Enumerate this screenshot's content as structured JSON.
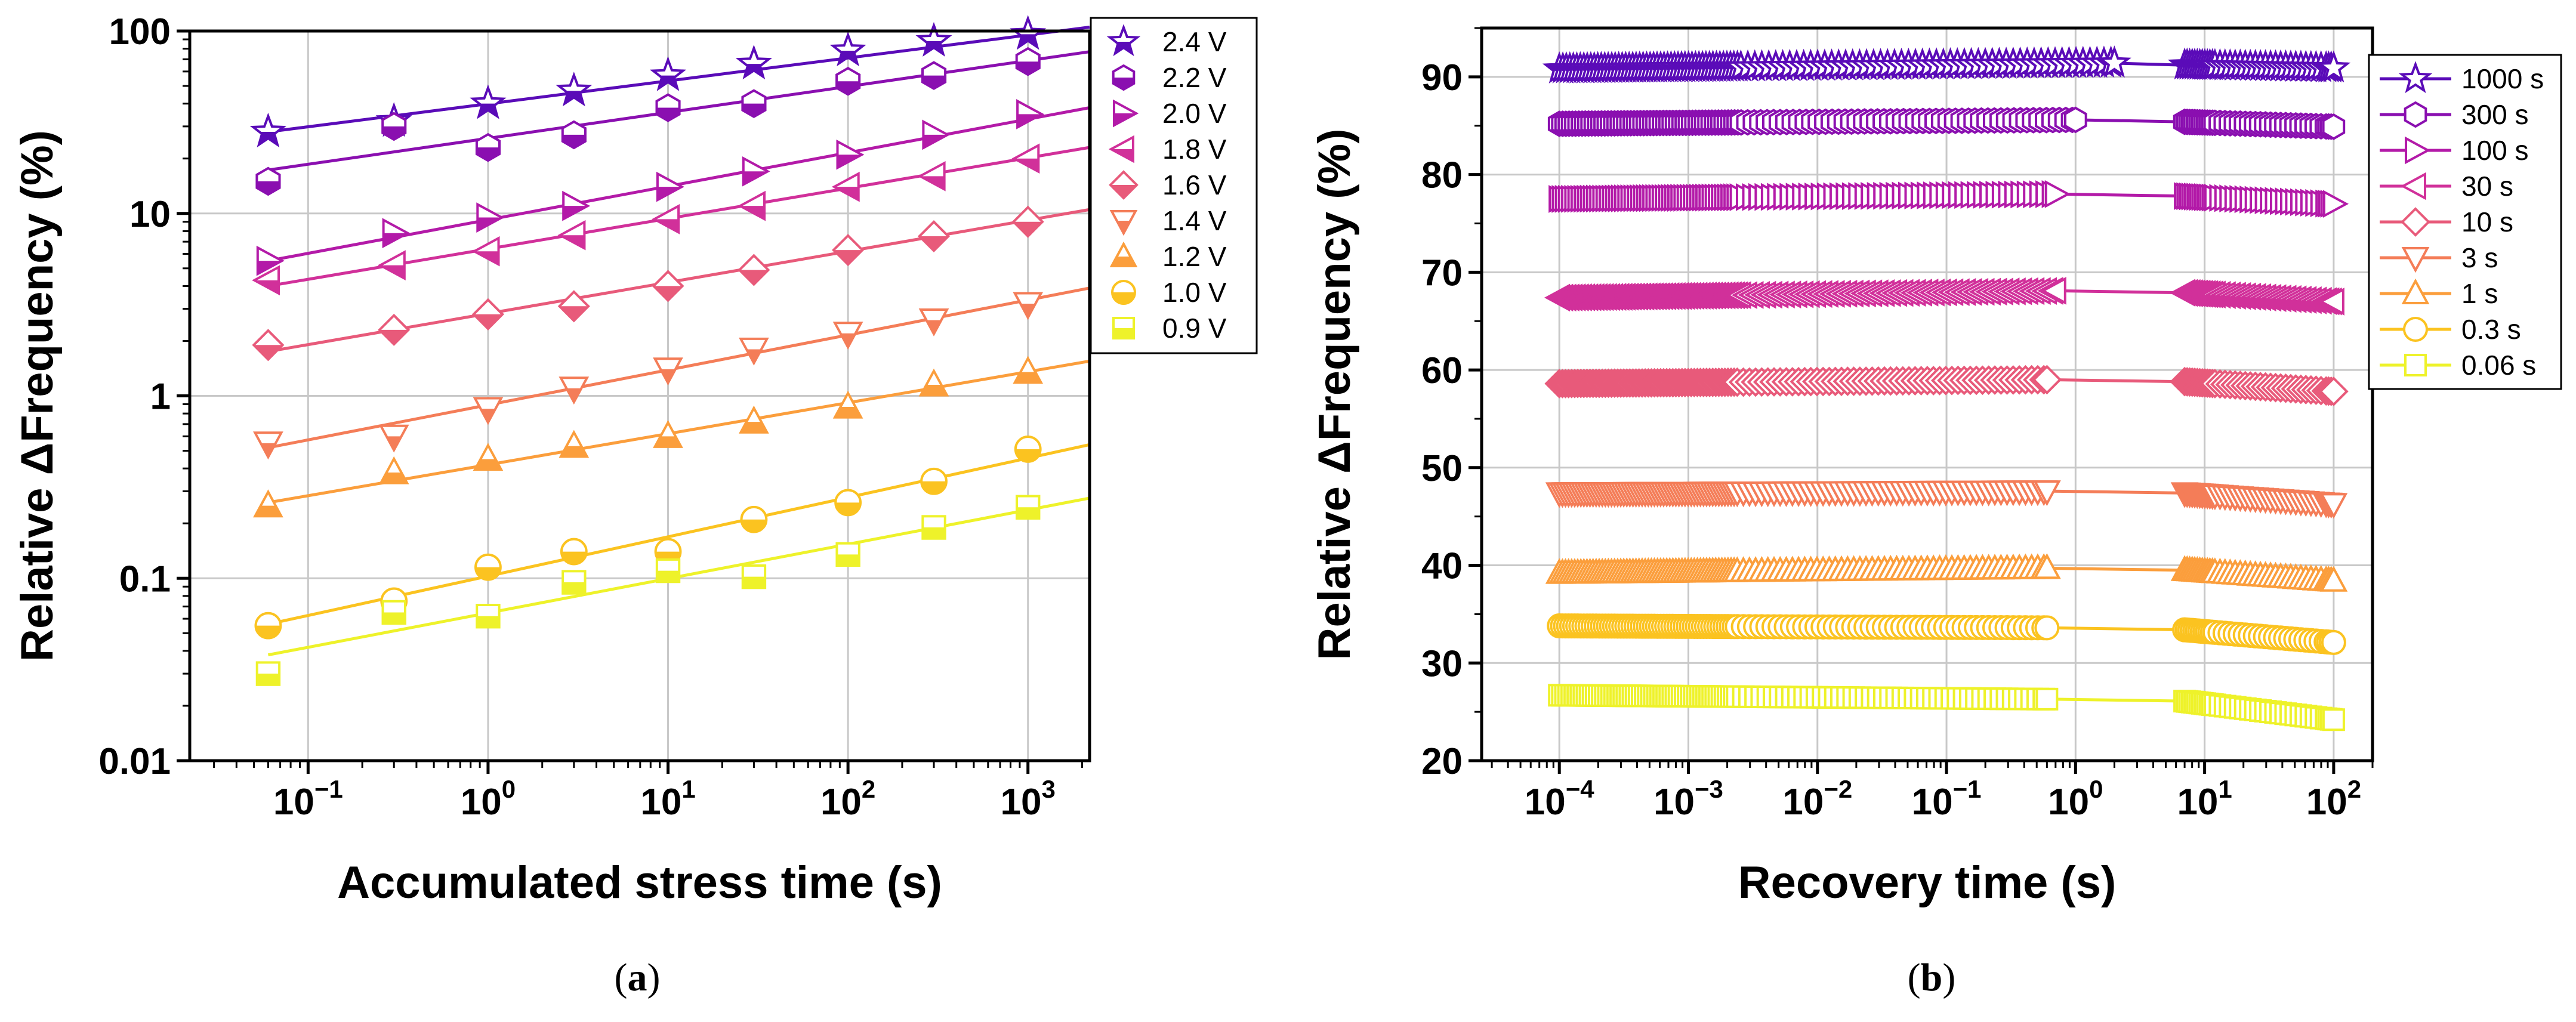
{
  "figure_captions": {
    "a": "a",
    "b": "b"
  },
  "colors": {
    "palette": [
      "#5a0bb8",
      "#8a0fb0",
      "#b31aa8",
      "#d1309a",
      "#e85a7a",
      "#f47d58",
      "#fb9e3c",
      "#fbc320",
      "#eef22a"
    ]
  },
  "chart_data": [
    {
      "id": "a",
      "type": "scatter",
      "x_scale": "log",
      "y_scale": "log",
      "xlabel": "Accumulated stress time (s)",
      "ylabel": "Relative ΔFrequency (%)",
      "xlim": [
        0.022,
        2200
      ],
      "ylim": [
        0.01,
        100
      ],
      "x_ticks": [
        {
          "base": "10",
          "exp": "−1",
          "value": 0.1
        },
        {
          "base": "10",
          "exp": "0",
          "value": 1
        },
        {
          "base": "10",
          "exp": "1",
          "value": 10
        },
        {
          "base": "10",
          "exp": "2",
          "value": 100
        },
        {
          "base": "10",
          "exp": "3",
          "value": 1000
        }
      ],
      "y_ticks": [
        {
          "label": "0.01",
          "value": 0.01
        },
        {
          "label": "0.1",
          "value": 0.1
        },
        {
          "label": "1",
          "value": 1
        },
        {
          "label": "10",
          "value": 10
        },
        {
          "label": "100",
          "value": 100
        }
      ],
      "grid": true,
      "legend_position": "top-right",
      "x": [
        0.06,
        0.3,
        1,
        3,
        10,
        30,
        100,
        300,
        1000
      ],
      "series": [
        {
          "name": "2.4 V",
          "marker": "star",
          "values": [
            28,
            32,
            40,
            47,
            57,
            66,
            78,
            88,
            96
          ],
          "fit": [
            28,
            105
          ]
        },
        {
          "name": "2.2 V",
          "marker": "hexagon",
          "values": [
            15,
            30,
            23,
            27,
            38,
            40,
            53,
            57,
            68
          ],
          "fit": [
            17.3,
            77
          ]
        },
        {
          "name": "2.0 V",
          "marker": "triangle-right",
          "values": [
            5.5,
            7.8,
            9.5,
            11,
            14,
            17,
            21,
            27,
            35
          ],
          "fit": [
            5.5,
            38
          ]
        },
        {
          "name": "1.8 V",
          "marker": "triangle-left",
          "values": [
            4.3,
            5.2,
            6.2,
            7.6,
            9.3,
            11,
            14,
            16,
            20
          ],
          "fit": [
            4,
            23
          ]
        },
        {
          "name": "1.6 V",
          "marker": "diamond",
          "values": [
            1.9,
            2.3,
            2.8,
            3.1,
            4.0,
            4.9,
            6.3,
            7.5,
            9.0
          ],
          "fit": [
            1.75,
            10.5
          ]
        },
        {
          "name": "1.4 V",
          "marker": "triangle-down",
          "values": [
            0.55,
            0.6,
            0.85,
            1.1,
            1.4,
            1.8,
            2.2,
            2.6,
            3.2
          ],
          "fit": [
            0.52,
            3.9
          ]
        },
        {
          "name": "1.2 V",
          "marker": "triangle-up",
          "values": [
            0.25,
            0.38,
            0.45,
            0.53,
            0.6,
            0.72,
            0.87,
            1.15,
            1.35
          ],
          "fit": [
            0.26,
            1.55
          ]
        },
        {
          "name": "1.0 V",
          "marker": "circle",
          "values": [
            0.055,
            0.075,
            0.115,
            0.14,
            0.14,
            0.21,
            0.26,
            0.34,
            0.51
          ],
          "fit": [
            0.056,
            0.54
          ]
        },
        {
          "name": "0.9 V",
          "marker": "square",
          "values": [
            0.03,
            0.065,
            0.062,
            0.095,
            0.11,
            0.102,
            0.135,
            0.19,
            0.245
          ],
          "fit": [
            0.038,
            0.275
          ]
        }
      ]
    },
    {
      "id": "b",
      "type": "line",
      "x_scale": "log",
      "y_scale": "linear",
      "xlabel": "Recovery time (s)",
      "ylabel": "Relative ΔFrequency (%)",
      "xlim": [
        2.5e-05,
        200
      ],
      "ylim": [
        20,
        95
      ],
      "x_ticks": [
        {
          "base": "10",
          "exp": "−4",
          "value": 0.0001
        },
        {
          "base": "10",
          "exp": "−3",
          "value": 0.001
        },
        {
          "base": "10",
          "exp": "−2",
          "value": 0.01
        },
        {
          "base": "10",
          "exp": "−1",
          "value": 0.1
        },
        {
          "base": "10",
          "exp": "0",
          "value": 1
        },
        {
          "base": "10",
          "exp": "1",
          "value": 10
        },
        {
          "base": "10",
          "exp": "2",
          "value": 100
        }
      ],
      "y_ticks": [
        {
          "label": "20",
          "value": 20
        },
        {
          "label": "30",
          "value": 30
        },
        {
          "label": "40",
          "value": 40
        },
        {
          "label": "50",
          "value": 50
        },
        {
          "label": "60",
          "value": 60
        },
        {
          "label": "70",
          "value": 70
        },
        {
          "label": "80",
          "value": 80
        },
        {
          "label": "90",
          "value": 90
        }
      ],
      "grid": true,
      "legend_position": "top-right",
      "series": [
        {
          "name": "1000 s",
          "marker": "star",
          "start": 90.8,
          "mid": 91.4,
          "end": 90.9,
          "x_end": 2
        },
        {
          "name": "300 s",
          "marker": "hexagon",
          "start": 85.2,
          "mid": 85.6,
          "end": 84.9,
          "x_end": 1
        },
        {
          "name": "100 s",
          "marker": "triangle-right",
          "start": 77.5,
          "mid": 78.0,
          "end": 77.0,
          "x_end": 0.7
        },
        {
          "name": "30 s",
          "marker": "triangle-left",
          "start": 67.4,
          "mid": 68.1,
          "end": 67.0,
          "x_end": 0.7
        },
        {
          "name": "10 s",
          "marker": "diamond",
          "start": 58.6,
          "mid": 59.0,
          "end": 57.8,
          "x_end": 0.6
        },
        {
          "name": "3 s",
          "marker": "triangle-down",
          "start": 47.4,
          "mid": 47.6,
          "end": 46.3,
          "x_end": 0.6
        },
        {
          "name": "1 s",
          "marker": "triangle-up",
          "start": 39.2,
          "mid": 39.7,
          "end": 38.4,
          "x_end": 0.6
        },
        {
          "name": "0.3 s",
          "marker": "circle",
          "start": 33.8,
          "mid": 33.6,
          "end": 32.1,
          "x_end": 0.6
        },
        {
          "name": "0.06 s",
          "marker": "square",
          "start": 26.7,
          "mid": 26.3,
          "end": 24.2,
          "x_end": 0.6
        }
      ]
    }
  ]
}
